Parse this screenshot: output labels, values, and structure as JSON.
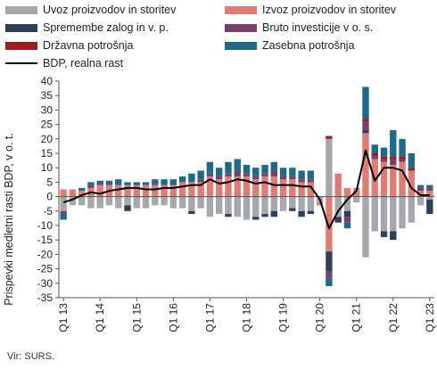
{
  "chart_data": {
    "type": "bar",
    "stacked": true,
    "ylabel": "Prispevki medletni rasti BDP, v o. t.",
    "ylim": [
      -35,
      40
    ],
    "yticks": [
      40,
      35,
      30,
      25,
      20,
      15,
      10,
      5,
      0,
      -5,
      -10,
      -15,
      -20,
      -25,
      -30,
      -35
    ],
    "x_tick_labels": [
      "Q1 13",
      "Q1 14",
      "Q1 15",
      "Q1 16",
      "Q1 17",
      "Q1 18",
      "Q1 19",
      "Q1 20",
      "Q1 21",
      "Q1 22",
      "Q1 23"
    ],
    "legend_placement": "top",
    "grid": false,
    "categories": [
      "Q1 13",
      "Q2 13",
      "Q3 13",
      "Q4 13",
      "Q1 14",
      "Q2 14",
      "Q3 14",
      "Q4 14",
      "Q1 15",
      "Q2 15",
      "Q3 15",
      "Q4 15",
      "Q1 16",
      "Q2 16",
      "Q3 16",
      "Q4 16",
      "Q1 17",
      "Q2 17",
      "Q3 17",
      "Q4 17",
      "Q1 18",
      "Q2 18",
      "Q3 18",
      "Q4 18",
      "Q1 19",
      "Q2 19",
      "Q3 19",
      "Q4 19",
      "Q1 20",
      "Q2 20",
      "Q3 20",
      "Q4 20",
      "Q1 21",
      "Q2 21",
      "Q3 21",
      "Q4 21",
      "Q1 22",
      "Q2 22",
      "Q3 22",
      "Q4 22",
      "Q1 23"
    ],
    "series": [
      {
        "name": "Uvoz proizvodov in storitev",
        "color": "#a6a8ab",
        "values": [
          -5,
          -3,
          -3,
          -4,
          -4,
          -3,
          -4,
          -3,
          -4,
          -4,
          -3,
          -3,
          -4,
          -4,
          -5,
          -4,
          -7,
          -6,
          -6,
          -7,
          -8,
          -7,
          -6,
          -5,
          -5,
          -4,
          -5,
          -5,
          -2,
          20,
          -7,
          -5,
          -2,
          -21,
          -12,
          -12,
          -12,
          -11,
          -9,
          -3,
          -1
        ]
      },
      {
        "name": "Izvoz proizvodov in storitev",
        "color": "#e07c74",
        "values": [
          2.5,
          2.5,
          2,
          3,
          4,
          4,
          4,
          4,
          4,
          4,
          4,
          4,
          4,
          5,
          5,
          5,
          7,
          6,
          7,
          7,
          7,
          6,
          7,
          7,
          6,
          6,
          5,
          5,
          -1,
          -19,
          8,
          3,
          3,
          22,
          13,
          12,
          11,
          12,
          9,
          2,
          2
        ]
      },
      {
        "name": "Spremembe zalog in v. p.",
        "color": "#2e3f58",
        "values": [
          0,
          0,
          0,
          0,
          0,
          0,
          0,
          -2,
          0,
          0,
          0,
          0,
          0,
          0,
          -1,
          0,
          0,
          0,
          -1,
          0,
          0,
          -1,
          -1,
          -2,
          0,
          -1,
          -2,
          -1,
          0,
          -7,
          -2,
          -2,
          0,
          1,
          0,
          -2,
          -3,
          0,
          0,
          0,
          -5
        ]
      },
      {
        "name": "Bruto investicije v o. s.",
        "color": "#7b3f6f",
        "values": [
          -1,
          0,
          0,
          1,
          0.5,
          0.5,
          0,
          0,
          0,
          0,
          0,
          0,
          0,
          0,
          0,
          1,
          1,
          1,
          1,
          2,
          1,
          1,
          1,
          2,
          1,
          1,
          1,
          1,
          0,
          -2,
          0,
          -2,
          0,
          3,
          1,
          1,
          2,
          1,
          0,
          1,
          1
        ]
      },
      {
        "name": "Državna potrošnja",
        "color": "#a01c1c",
        "values": [
          0,
          0,
          0,
          0,
          0,
          0,
          0,
          0,
          0,
          0,
          0,
          0,
          0,
          0,
          0,
          0,
          0,
          0,
          0,
          0,
          0,
          0,
          0,
          0,
          0,
          0,
          0,
          0,
          0,
          1,
          0,
          0,
          0,
          1,
          1,
          1,
          1,
          1,
          1,
          0,
          0
        ]
      },
      {
        "name": "Zasebna potrošnja",
        "color": "#1f6a8a",
        "values": [
          -2,
          0,
          1,
          1,
          1,
          1,
          2,
          1,
          1,
          1,
          2,
          2,
          2,
          2,
          3,
          3,
          4,
          3,
          4,
          4,
          3,
          3,
          3,
          3,
          3,
          3,
          3,
          3,
          0,
          -3,
          0,
          -2,
          0,
          11,
          3,
          3,
          9,
          6,
          5,
          1,
          1
        ]
      }
    ],
    "line": {
      "name": "BDP, realna rast",
      "color": "#000000",
      "values": [
        -2,
        -1,
        0.5,
        1.5,
        1,
        2,
        2.5,
        3,
        3,
        2.5,
        2.5,
        3,
        3,
        3.5,
        4,
        4,
        6,
        4.5,
        5,
        6,
        5.5,
        4.5,
        5,
        4,
        4,
        4,
        3.5,
        3.5,
        -1,
        -11,
        -5,
        -1,
        2,
        16,
        5.5,
        10,
        10,
        9,
        3,
        0.5,
        0.5
      ]
    }
  },
  "legend": [
    {
      "label": "Uvoz proizvodov in storitev",
      "color": "#a6a8ab",
      "kind": "bar"
    },
    {
      "label": "Izvoz proizvodov in storitev",
      "color": "#e07c74",
      "kind": "bar"
    },
    {
      "label": "Spremembe zalog in v. p.",
      "color": "#2e3f58",
      "kind": "bar"
    },
    {
      "label": "Bruto investicije v o. s.",
      "color": "#7b3f6f",
      "kind": "bar"
    },
    {
      "label": "Državna potrošnja",
      "color": "#a01c1c",
      "kind": "bar"
    },
    {
      "label": "Zasebna potrošnja",
      "color": "#1f6a8a",
      "kind": "bar"
    },
    {
      "label": "BDP, realna rast",
      "color": "#000000",
      "kind": "line"
    }
  ],
  "source": "Vir: SURS."
}
